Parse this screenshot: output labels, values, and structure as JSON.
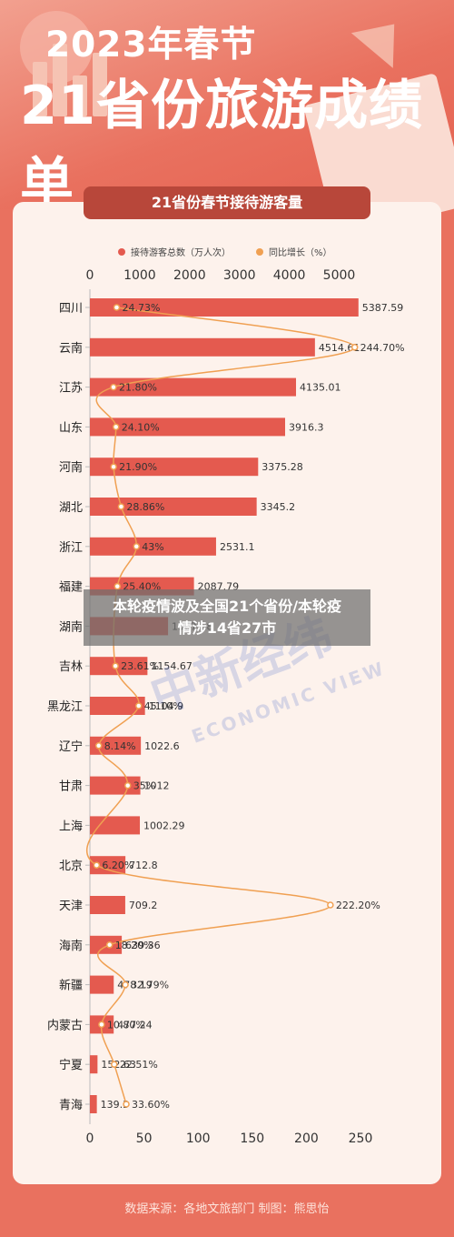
{
  "header": {
    "year_title": "2023年春节",
    "main_title": "21省份旅游成绩单"
  },
  "card": {
    "title": "21省份春节接待游客量"
  },
  "overlay": {
    "banner_line1": "本轮疫情波及全国21个省份/本轮疫",
    "banner_line2": "情涉14省27市",
    "watermark": "中新经纬",
    "watermark_sub": "ECONOMIC VIEW"
  },
  "footer": {
    "source": "数据来源：各地文旅部门  制图：熊思怡"
  },
  "colors": {
    "bar": "#e45a4f",
    "line": "#f0a052",
    "background": "#e9715f",
    "card": "#fdf2ec",
    "header": "#b8473a"
  },
  "chart_data": {
    "type": "bar",
    "orientation": "horizontal",
    "categories": [
      "四川",
      "云南",
      "江苏",
      "山东",
      "河南",
      "湖北",
      "浙江",
      "福建",
      "湖南",
      "吉林",
      "黑龙江",
      "辽宁",
      "甘肃",
      "上海",
      "北京",
      "天津",
      "海南",
      "新疆",
      "内蒙古",
      "宁夏",
      "青海"
    ],
    "series": [
      {
        "name": "接待游客总数（万人次）",
        "type": "bar",
        "axis": "top",
        "values": [
          5387.59,
          4514.61,
          4135.01,
          3916.3,
          3375.28,
          3345.2,
          2531.1,
          2087.79,
          1567.58,
          1154.67,
          1104.9,
          1022.6,
          1012,
          1002.29,
          712.8,
          709.2,
          639.36,
          478.19,
          477.24,
          152.63,
          139.3
        ],
        "labels": [
          "5387.59",
          "4514.61",
          "4135.01",
          "3916.3",
          "3375.28",
          "3345.2",
          "2531.1",
          "2087.79",
          "1567.58",
          "1154.67",
          "1104.9",
          "1022.6",
          "1012",
          "1002.29",
          "712.8",
          "709.2",
          "639.36",
          "478.19",
          "477.24",
          "152.63",
          "139.3"
        ]
      },
      {
        "name": "同比增长（%）",
        "type": "line",
        "axis": "bottom",
        "values": [
          24.73,
          244.7,
          21.8,
          24.1,
          21.9,
          28.86,
          43,
          25.4,
          null,
          23.61,
          45.1,
          8.14,
          35,
          null,
          6.2,
          222.2,
          18.2,
          32.79,
          10.8,
          22.51,
          33.6
        ],
        "labels": [
          "24.73%",
          "244.70%",
          "21.80%",
          "24.10%",
          "21.90%",
          "28.86%",
          "43%",
          "25.40%",
          "",
          "23.61%",
          "45.10%",
          "8.14%",
          "35%",
          "",
          "6.20%",
          "222.20%",
          "18.20%",
          "32.79%",
          "10.80%",
          "22.51%",
          "33.60%"
        ]
      }
    ],
    "top_axis": {
      "ticks": [
        "0",
        "1000",
        "2000",
        "3000",
        "4000",
        "5000"
      ],
      "range": [
        0,
        5500
      ]
    },
    "bottom_axis": {
      "ticks": [
        "0",
        "50",
        "100",
        "150",
        "200",
        "250"
      ],
      "range": [
        0,
        250
      ]
    },
    "legend_position": "top"
  }
}
